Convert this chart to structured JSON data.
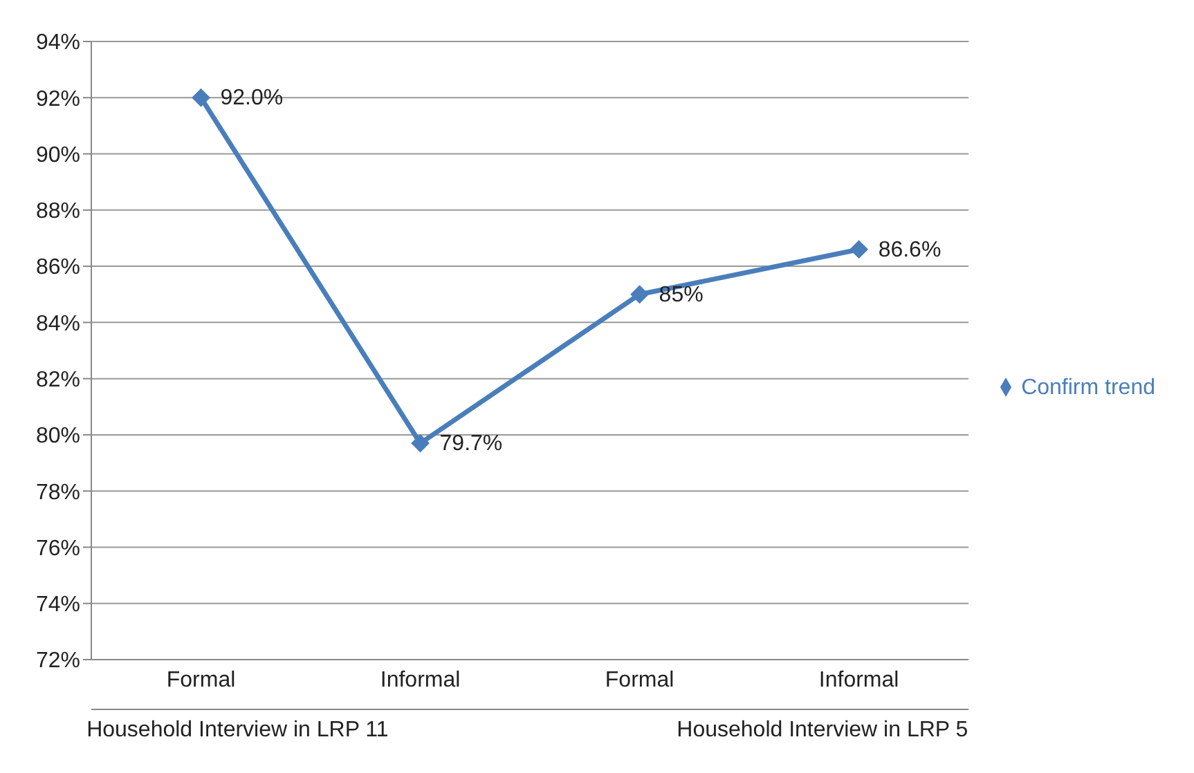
{
  "chart_data": {
    "type": "line",
    "categories": [
      "Formal",
      "Informal",
      "Formal",
      "Informal"
    ],
    "series": [
      {
        "name": "Confirm trend",
        "color": "#4a7ebb",
        "values": [
          92.0,
          79.7,
          85,
          86.6
        ],
        "value_labels": [
          "92.0%",
          "79.7%",
          "85%",
          "86.6%"
        ]
      }
    ],
    "annotations": [
      "Household Interview in LRP 11",
      "Household Interview in LRP 5"
    ],
    "ylim": [
      72,
      94
    ],
    "yticks": [
      {
        "value": 72,
        "label": "72%"
      },
      {
        "value": 74,
        "label": "74%"
      },
      {
        "value": 76,
        "label": "76%"
      },
      {
        "value": 78,
        "label": "78%"
      },
      {
        "value": 80,
        "label": "80%"
      },
      {
        "value": 82,
        "label": "82%"
      },
      {
        "value": 84,
        "label": "84%"
      },
      {
        "value": 86,
        "label": "86%"
      },
      {
        "value": 88,
        "label": "88%"
      },
      {
        "value": 90,
        "label": "90%"
      },
      {
        "value": 92,
        "label": "92%"
      },
      {
        "value": 94,
        "label": "94%"
      }
    ],
    "grid": "y",
    "legend": "right",
    "marker": "diamond",
    "line_style": "solid"
  }
}
